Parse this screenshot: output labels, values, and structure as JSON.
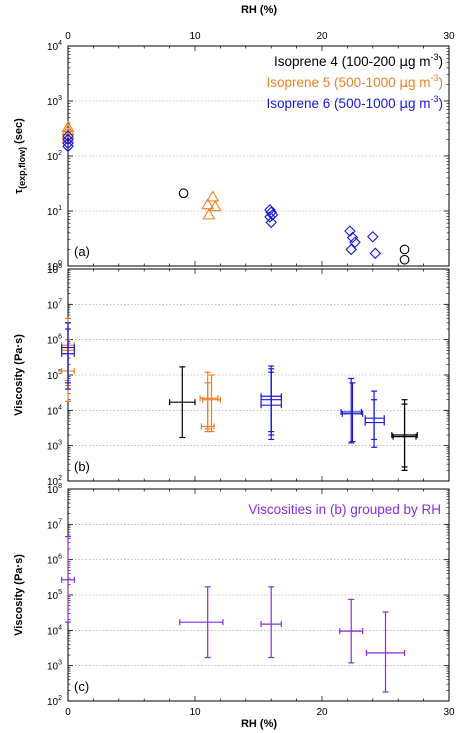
{
  "chart_data": [
    {
      "type": "scatter",
      "panel_label": "(a)",
      "top_axis": {
        "label": "RH (%)",
        "ticks": [
          "0",
          "10",
          "20",
          "30"
        ]
      },
      "xlim": [
        0,
        30
      ],
      "ylabel_main": "τ",
      "ylabel_sub": "(exp,flow)",
      "ylabel_unit": " (sec)",
      "y_scale": "log",
      "ylim": [
        1,
        10000
      ],
      "y_ticks": [
        {
          "v": 1,
          "base": "10",
          "exp": "0"
        },
        {
          "v": 10,
          "base": "10",
          "exp": "1"
        },
        {
          "v": 100,
          "base": "10",
          "exp": "2"
        },
        {
          "v": 1000,
          "base": "10",
          "exp": "3"
        },
        {
          "v": 10000,
          "base": "10",
          "exp": "4"
        }
      ],
      "grid": true,
      "legend_position": "top-right",
      "legend": [
        {
          "pre": "Isoprene 4 (100-200 ",
          "mu": "μ",
          "post": "g m",
          "sup": "-3",
          "close": ")",
          "color": "#000000"
        },
        {
          "pre": "Isoprene 5 (500-1000 ",
          "mu": "μ",
          "post": "g m",
          "sup": "-3",
          "close": ")",
          "color": "#f07f22"
        },
        {
          "pre": "Isoprene 6 (500-1000 ",
          "mu": "μ",
          "post": "g m",
          "sup": "-3",
          "close": ")",
          "color": "#1a1adb"
        }
      ],
      "series": [
        {
          "name": "Isoprene 4",
          "marker": "circle",
          "color": "#000000",
          "x": [
            9.1,
            26.5,
            26.5
          ],
          "y": [
            21,
            2,
            1.3
          ]
        },
        {
          "name": "Isoprene 5",
          "marker": "triangle",
          "color": "#f07f22",
          "x": [
            0,
            0,
            0,
            0,
            11.0,
            11.4,
            11.6,
            11.1
          ],
          "y": [
            330,
            290,
            250,
            210,
            13,
            18,
            12,
            8.5
          ]
        },
        {
          "name": "Isoprene 6",
          "marker": "diamond",
          "color": "#1a1adb",
          "x": [
            0,
            0,
            0,
            0,
            15.9,
            16.0,
            16.1,
            15.9,
            16.0,
            22.2,
            22.4,
            22.6,
            22.3,
            24.0,
            24.2
          ],
          "y": [
            230,
            200,
            170,
            150,
            10.5,
            9.5,
            8.5,
            7.8,
            6.2,
            4.3,
            3.3,
            2.7,
            2.0,
            3.4,
            1.7
          ]
        }
      ]
    },
    {
      "type": "scatter",
      "panel_label": "(b)",
      "xlim": [
        0,
        30
      ],
      "ylabel": "Viscosity (Pa·s)",
      "y_scale": "log",
      "ylim": [
        100,
        100000000
      ],
      "y_ticks": [
        {
          "v": 100,
          "base": "10",
          "exp": "2"
        },
        {
          "v": 1000,
          "base": "10",
          "exp": "3"
        },
        {
          "v": 10000,
          "base": "10",
          "exp": "4"
        },
        {
          "v": 100000,
          "base": "10",
          "exp": "5"
        },
        {
          "v": 1000000,
          "base": "10",
          "exp": "6"
        },
        {
          "v": 10000000,
          "base": "10",
          "exp": "7"
        },
        {
          "v": 100000000,
          "base": "10",
          "exp": "8"
        }
      ],
      "grid": true,
      "series": [
        {
          "name": "Isoprene 4",
          "color": "#000000",
          "points": [
            {
              "x": 9.0,
              "y": 17000,
              "ylo": 1700,
              "yhi": 170000,
              "xlo": 8.0,
              "xhi": 10.0
            },
            {
              "x": 26.5,
              "y": 2000,
              "ylo": 200,
              "yhi": 20000,
              "xlo": 25.5,
              "xhi": 27.5
            },
            {
              "x": 26.5,
              "y": 1800,
              "ylo": 250,
              "yhi": 15000,
              "xlo": 25.6,
              "xhi": 27.4
            }
          ]
        },
        {
          "name": "Isoprene 5",
          "color": "#f07f22",
          "points": [
            {
              "x": 0,
              "y": 700000,
              "ylo": 70000,
              "yhi": 4000000,
              "xlo": -0.5,
              "xhi": 0.5
            },
            {
              "x": 0,
              "y": 500000,
              "ylo": 50000,
              "yhi": 3000000,
              "xlo": -0.5,
              "xhi": 0.5
            },
            {
              "x": 0,
              "y": 130000,
              "ylo": 18000,
              "yhi": 1000000,
              "xlo": -0.5,
              "xhi": 0.5
            },
            {
              "x": 11.0,
              "y": 22000,
              "ylo": 3000,
              "yhi": 120000,
              "xlo": 10.4,
              "xhi": 11.8
            },
            {
              "x": 11.3,
              "y": 20000,
              "ylo": 2500,
              "yhi": 100000,
              "xlo": 10.6,
              "xhi": 12.0
            },
            {
              "x": 11.0,
              "y": 3500,
              "ylo": 2500,
              "yhi": 60000,
              "xlo": 10.5,
              "xhi": 11.5
            }
          ]
        },
        {
          "name": "Isoprene 6",
          "color": "#1a1adb",
          "points": [
            {
              "x": 0,
              "y": 600000,
              "ylo": 60000,
              "yhi": 3000000,
              "xlo": -0.5,
              "xhi": 0.5
            },
            {
              "x": 0,
              "y": 400000,
              "ylo": 40000,
              "yhi": 2000000,
              "xlo": -0.5,
              "xhi": 0.5
            },
            {
              "x": 16.0,
              "y": 25000,
              "ylo": 2500,
              "yhi": 180000,
              "xlo": 15.2,
              "xhi": 16.8
            },
            {
              "x": 16.0,
              "y": 20000,
              "ylo": 2000,
              "yhi": 150000,
              "xlo": 15.2,
              "xhi": 16.8
            },
            {
              "x": 16.0,
              "y": 14000,
              "ylo": 1500,
              "yhi": 120000,
              "xlo": 15.2,
              "xhi": 16.8
            },
            {
              "x": 22.3,
              "y": 9000,
              "ylo": 1200,
              "yhi": 80000,
              "xlo": 21.5,
              "xhi": 23.1
            },
            {
              "x": 22.4,
              "y": 8000,
              "ylo": 1300,
              "yhi": 60000,
              "xlo": 21.6,
              "xhi": 23.2
            },
            {
              "x": 24.1,
              "y": 6000,
              "ylo": 900,
              "yhi": 35000,
              "xlo": 23.4,
              "xhi": 24.9
            },
            {
              "x": 24.1,
              "y": 4500,
              "ylo": 1500,
              "yhi": 20000,
              "xlo": 23.4,
              "xhi": 24.9
            }
          ]
        }
      ]
    },
    {
      "type": "scatter",
      "panel_label": "(c)",
      "annotation": "Viscosities in (b) grouped by RH",
      "annotation_color": "#8a2be2",
      "bottom_axis": {
        "label": "RH (%)",
        "ticks": [
          "0",
          "10",
          "20",
          "30"
        ]
      },
      "xlim": [
        0,
        30
      ],
      "ylabel": "Viscosity (Pa·s)",
      "y_scale": "log",
      "ylim": [
        100,
        100000000
      ],
      "y_ticks": [
        {
          "v": 100,
          "base": "10",
          "exp": "2"
        },
        {
          "v": 1000,
          "base": "10",
          "exp": "3"
        },
        {
          "v": 10000,
          "base": "10",
          "exp": "4"
        },
        {
          "v": 100000,
          "base": "10",
          "exp": "5"
        },
        {
          "v": 1000000,
          "base": "10",
          "exp": "6"
        },
        {
          "v": 10000000,
          "base": "10",
          "exp": "7"
        },
        {
          "v": 100000000,
          "base": "10",
          "exp": "8"
        }
      ],
      "grid": true,
      "series": [
        {
          "color": "#8a2be2",
          "points": [
            {
              "x": 0,
              "y": 270000,
              "ylo": 17000,
              "yhi": 4500000,
              "xlo": -0.5,
              "xhi": 0.5
            },
            {
              "x": 11.0,
              "y": 17000,
              "ylo": 1700,
              "yhi": 170000,
              "xlo": 8.8,
              "xhi": 12.2
            },
            {
              "x": 16.0,
              "y": 15000,
              "ylo": 1700,
              "yhi": 170000,
              "xlo": 15.2,
              "xhi": 16.8
            },
            {
              "x": 22.3,
              "y": 9500,
              "ylo": 1200,
              "yhi": 75000,
              "xlo": 21.4,
              "xhi": 23.2
            },
            {
              "x": 25.0,
              "y": 2300,
              "ylo": 180,
              "yhi": 33000,
              "xlo": 23.5,
              "xhi": 26.5
            }
          ]
        }
      ]
    }
  ]
}
